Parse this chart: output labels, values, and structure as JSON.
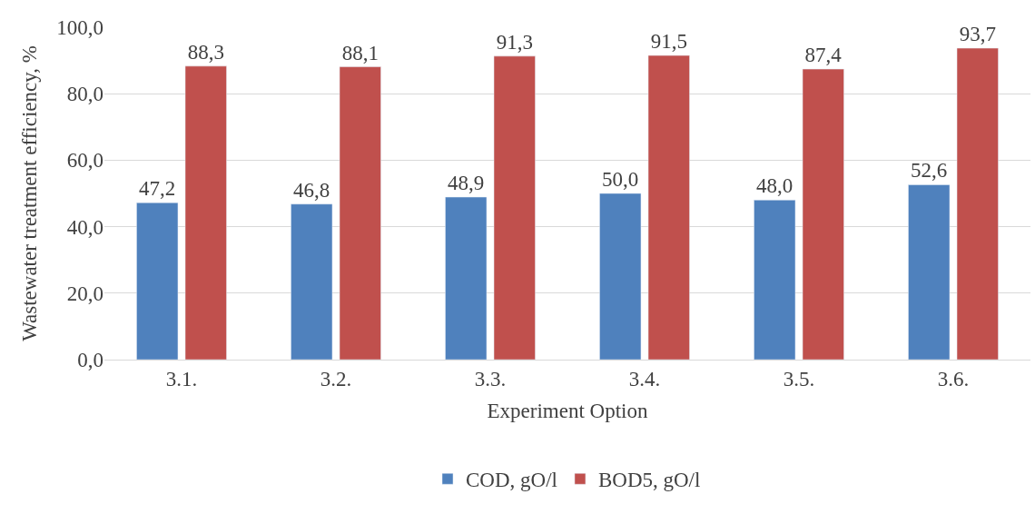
{
  "chart_data": {
    "type": "bar",
    "xlabel": "Experiment Option",
    "ylabel": "Wastewater treatment efficiency, %",
    "categories": [
      "3.1.",
      "3.2.",
      "3.3.",
      "3.4.",
      "3.5.",
      "3.6."
    ],
    "series": [
      {
        "name": "COD, gO/l",
        "color": "#4f81bd",
        "values": [
          47.2,
          46.8,
          48.9,
          50.0,
          48.0,
          52.6
        ],
        "value_labels": [
          "47,2",
          "46,8",
          "48,9",
          "50,0",
          "48,0",
          "52,6"
        ]
      },
      {
        "name": "BOD5, gO/l",
        "color": "#c0504d",
        "values": [
          88.3,
          88.1,
          91.3,
          91.5,
          87.4,
          93.7
        ],
        "value_labels": [
          "88,3",
          "88,1",
          "91,3",
          "91,5",
          "87,4",
          "93,7"
        ]
      }
    ],
    "ylim": [
      0,
      100
    ],
    "yticks": [
      {
        "value": 0,
        "label": "0,0"
      },
      {
        "value": 20,
        "label": "20,0"
      },
      {
        "value": 40,
        "label": "40,0"
      },
      {
        "value": 60,
        "label": "60,0"
      },
      {
        "value": 80,
        "label": "80,0"
      },
      {
        "value": 100,
        "label": "100,0"
      }
    ],
    "grid": "y",
    "legend": "bottom"
  }
}
